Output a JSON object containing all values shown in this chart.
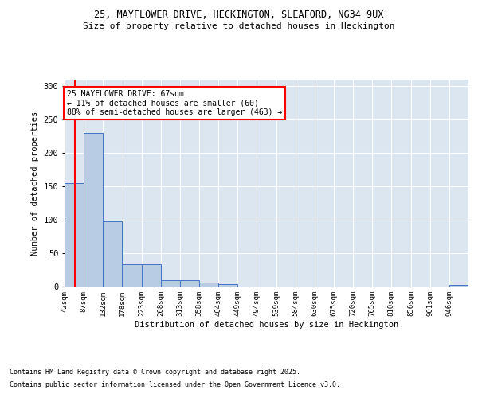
{
  "title_line1": "25, MAYFLOWER DRIVE, HECKINGTON, SLEAFORD, NG34 9UX",
  "title_line2": "Size of property relative to detached houses in Heckington",
  "xlabel": "Distribution of detached houses by size in Heckington",
  "ylabel": "Number of detached properties",
  "bar_edges": [
    42,
    87,
    132,
    178,
    223,
    268,
    313,
    358,
    404,
    449,
    494,
    539,
    584,
    630,
    675,
    720,
    765,
    810,
    856,
    901,
    946
  ],
  "bar_heights": [
    155,
    230,
    98,
    33,
    33,
    10,
    10,
    6,
    3,
    0,
    0,
    0,
    0,
    0,
    0,
    0,
    0,
    0,
    0,
    0,
    2
  ],
  "bar_color": "#b8cce4",
  "bar_edge_color": "#4472c4",
  "background_color": "#dce6f1",
  "grid_color": "#ffffff",
  "red_line_x": 67,
  "annotation_title": "25 MAYFLOWER DRIVE: 67sqm",
  "annotation_line1": "← 11% of detached houses are smaller (60)",
  "annotation_line2": "88% of semi-detached houses are larger (463) →",
  "annotation_box_color": "#ffffff",
  "annotation_border_color": "#ff0000",
  "red_line_color": "#ff0000",
  "footnote1": "Contains HM Land Registry data © Crown copyright and database right 2025.",
  "footnote2": "Contains public sector information licensed under the Open Government Licence v3.0.",
  "ylim": [
    0,
    310
  ],
  "yticks": [
    0,
    50,
    100,
    150,
    200,
    250,
    300
  ],
  "tick_labels": [
    "42sqm",
    "87sqm",
    "132sqm",
    "178sqm",
    "223sqm",
    "268sqm",
    "313sqm",
    "358sqm",
    "404sqm",
    "449sqm",
    "494sqm",
    "539sqm",
    "584sqm",
    "630sqm",
    "675sqm",
    "720sqm",
    "765sqm",
    "810sqm",
    "856sqm",
    "901sqm",
    "946sqm"
  ]
}
